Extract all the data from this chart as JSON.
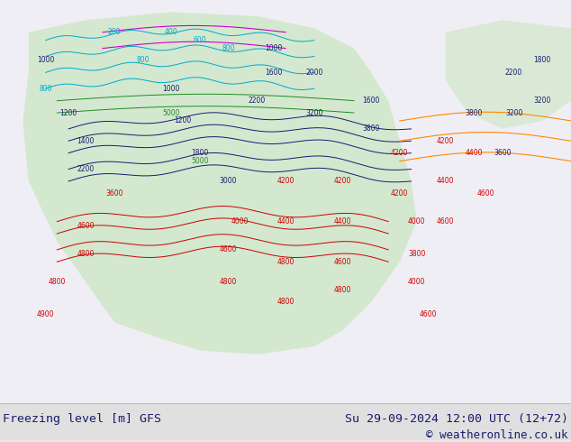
{
  "title_left": "Freezing level [m] GFS",
  "title_right": "Su 29-09-2024 12:00 UTC (12+72)",
  "copyright": "© weatheronline.co.uk",
  "bg_color": "#e8e8e8",
  "text_color": "#1a1a6e",
  "copyright_color": "#1a1a6e",
  "bottom_bar_color": "#d0d0d0",
  "fig_width": 6.34,
  "fig_height": 4.9,
  "dpi": 100,
  "font_size_labels": 9.5,
  "font_size_copyright": 9.0,
  "navy": "#1a1a6e",
  "cyan_c": "#00aacc",
  "green_c": "#228B22",
  "magenta_c": "#cc00cc",
  "red_c": "#cc0000",
  "orange_c": "#ff8800"
}
